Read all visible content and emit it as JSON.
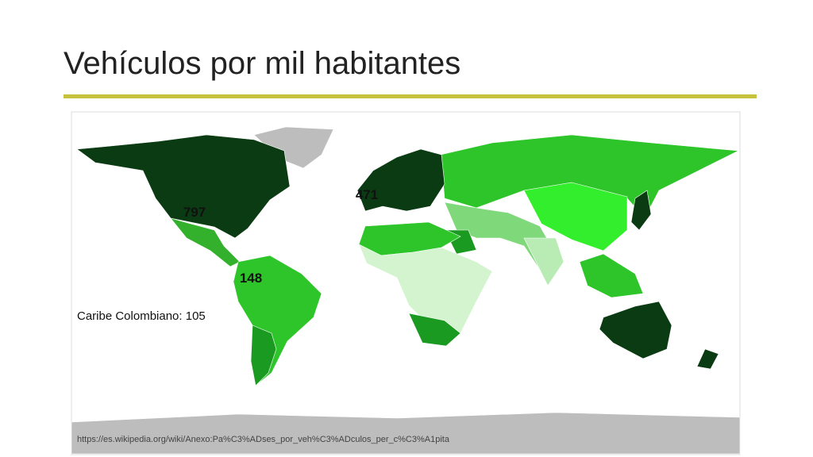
{
  "header": {
    "title": "Vehículos por mil habitantes"
  },
  "map": {
    "labels": [
      "797",
      "471",
      "148"
    ],
    "note": "Caribe Colombiano: 105",
    "source": "https://es.wikipedia.org/wiki/Anexo:Pa%C3%ADses_por_veh%C3%ADculos_per_c%C3%A1pita"
  }
}
